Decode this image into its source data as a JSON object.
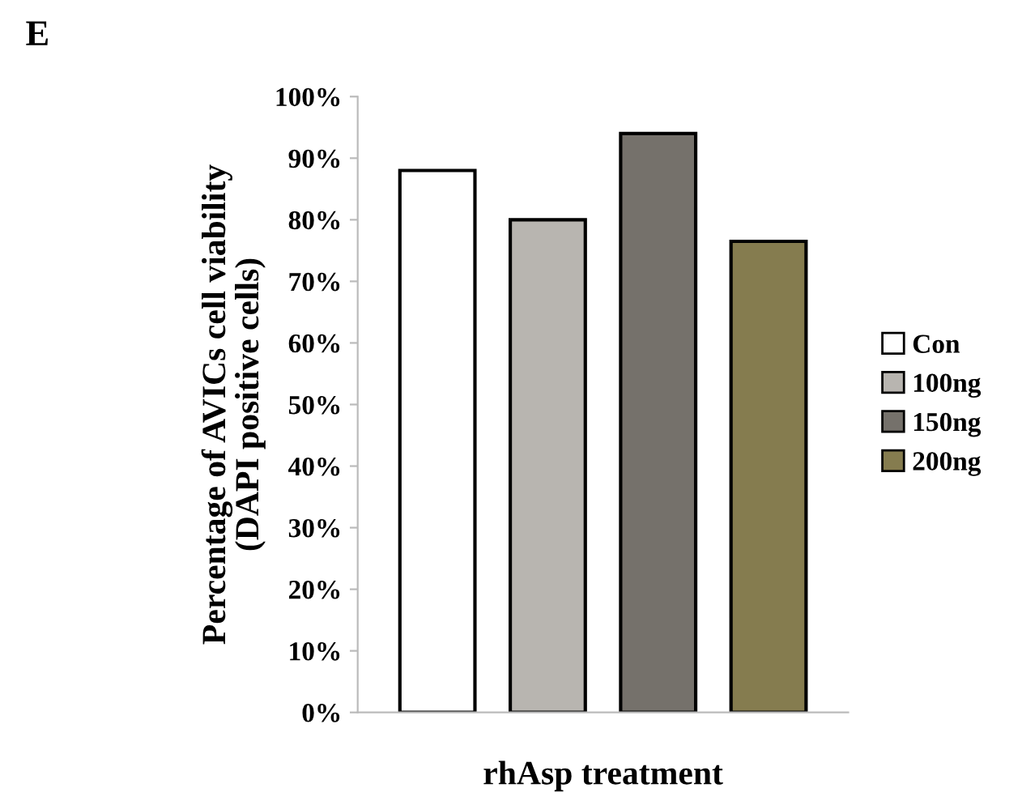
{
  "chart_data": {
    "type": "bar",
    "annotations": [
      "E"
    ],
    "xlabel": "rhAsp treatment",
    "ylabel": "Percentage of AVICs cell viability\n(DAPI positive cells)",
    "categories": [
      null
    ],
    "series": [
      {
        "name": "Con",
        "color": "#ffffff",
        "values": [
          88
        ]
      },
      {
        "name": "100ng",
        "color": "#b8b5b0",
        "values": [
          80
        ]
      },
      {
        "name": "150ng",
        "color": "#75716b",
        "values": [
          94
        ]
      },
      {
        "name": "200ng",
        "color": "#857c4f",
        "values": [
          76.5
        ]
      }
    ],
    "ylim": [
      0,
      100
    ],
    "yticks": [
      {
        "value": 0,
        "label": "0%"
      },
      {
        "value": 10,
        "label": "10%"
      },
      {
        "value": 20,
        "label": "20%"
      },
      {
        "value": 30,
        "label": "30%"
      },
      {
        "value": 40,
        "label": "40%"
      },
      {
        "value": 50,
        "label": "50%"
      },
      {
        "value": 60,
        "label": "60%"
      },
      {
        "value": 70,
        "label": "70%"
      },
      {
        "value": 80,
        "label": "80%"
      },
      {
        "value": 90,
        "label": "90%"
      },
      {
        "value": 100,
        "label": "100%"
      }
    ],
    "grid": false,
    "legend": "right"
  }
}
